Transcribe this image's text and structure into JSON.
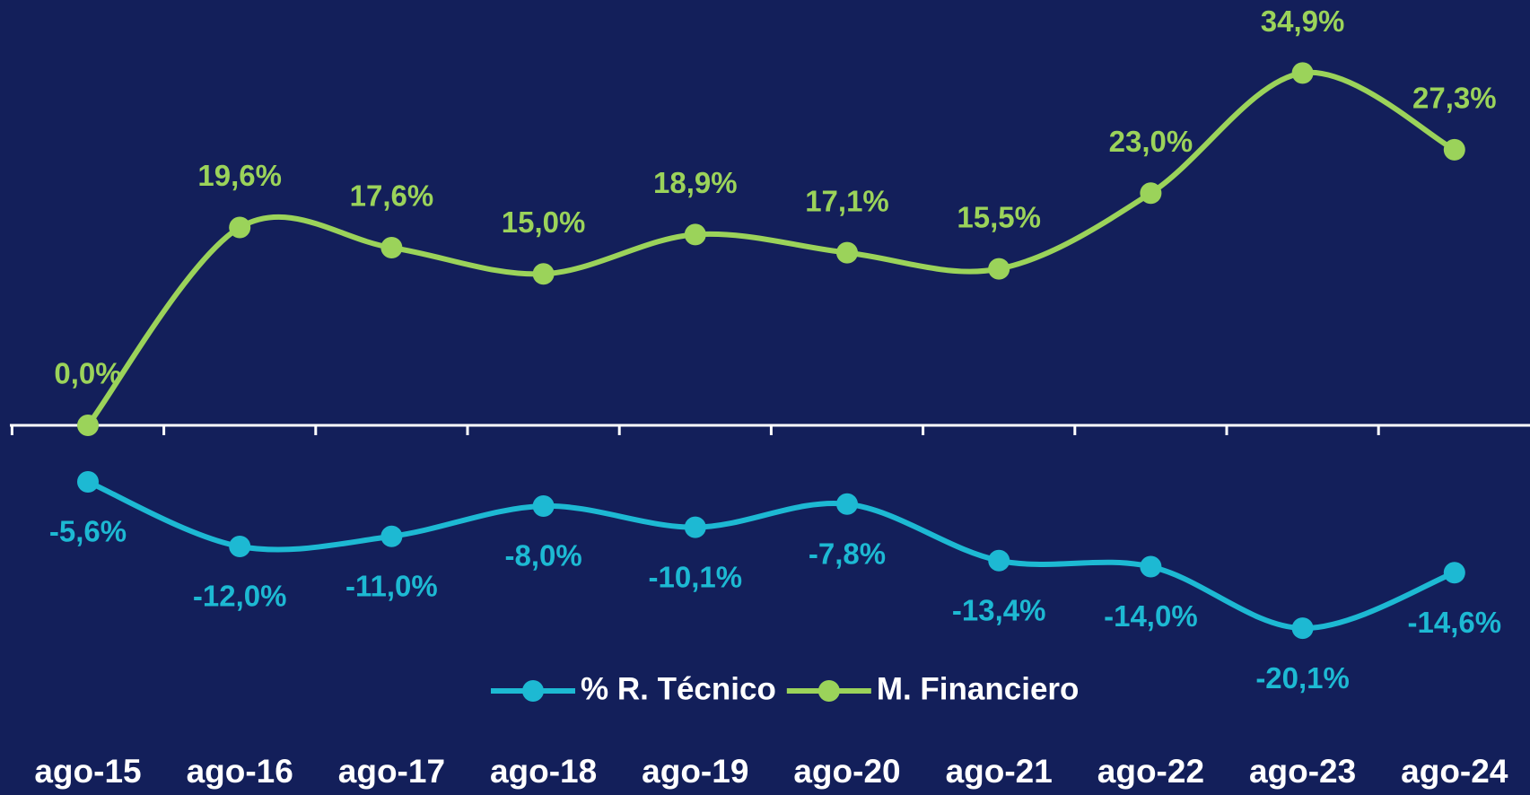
{
  "chart_data": {
    "type": "line",
    "categories": [
      "ago-15",
      "ago-16",
      "ago-17",
      "ago-18",
      "ago-19",
      "ago-20",
      "ago-21",
      "ago-22",
      "ago-23",
      "ago-24"
    ],
    "series": [
      {
        "name": "% R. Técnico",
        "color": "#1db9d3",
        "values": [
          -5.6,
          -12.0,
          -11.0,
          -8.0,
          -10.1,
          -7.8,
          -13.4,
          -14.0,
          -20.1,
          -14.6
        ],
        "value_labels": [
          "-5,6%",
          "-12,0%",
          "-11,0%",
          "-8,0%",
          "-10,1%",
          "-7,8%",
          "-13,4%",
          "-14,0%",
          "-20,1%",
          "-14,6%"
        ]
      },
      {
        "name": "M. Financiero",
        "color": "#9bd35a",
        "values": [
          0.0,
          19.6,
          17.6,
          15.0,
          18.9,
          17.1,
          15.5,
          23.0,
          34.9,
          27.3
        ],
        "value_labels": [
          "0,0%",
          "19,6%",
          "17,6%",
          "15,0%",
          "18,9%",
          "17,1%",
          "15,5%",
          "23,0%",
          "34,9%",
          "27,3%"
        ]
      }
    ],
    "ylim": [
      -36,
      40
    ],
    "legend": "bottom"
  }
}
